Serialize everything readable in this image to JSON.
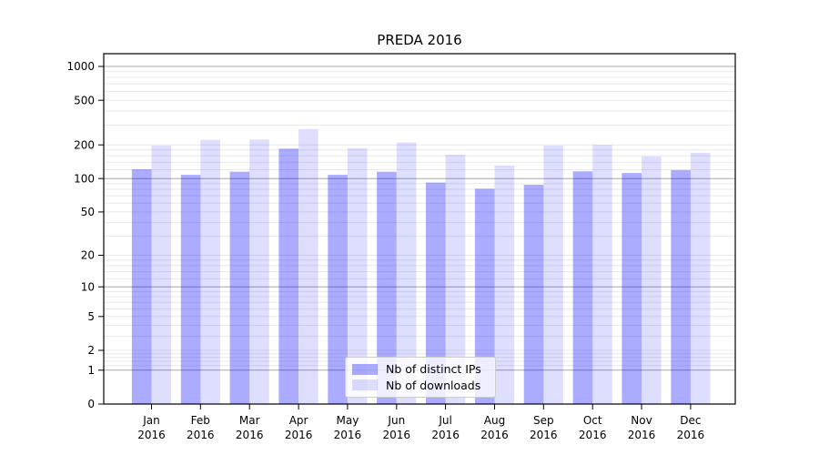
{
  "title": "PREDA 2016",
  "chart_data": {
    "type": "bar",
    "title": "PREDA 2016",
    "categories": [
      "Jan 2016",
      "Feb 2016",
      "Mar 2016",
      "Apr 2016",
      "May 2016",
      "Jun 2016",
      "Jul 2016",
      "Aug 2016",
      "Sep 2016",
      "Oct 2016",
      "Nov 2016",
      "Dec 2016"
    ],
    "months": [
      "Jan",
      "Feb",
      "Mar",
      "Apr",
      "May",
      "Jun",
      "Jul",
      "Aug",
      "Sep",
      "Oct",
      "Nov",
      "Dec"
    ],
    "year_label": "2016",
    "series": [
      {
        "name": "Nb of distinct IPs",
        "color": "rgba(0,0,255,0.33)",
        "flat_color": "#ababff",
        "values": [
          121,
          108,
          115,
          185,
          108,
          115,
          92,
          81,
          88,
          116,
          112,
          119
        ]
      },
      {
        "name": "Nb of downloads",
        "color": "rgba(0,0,255,0.13)",
        "flat_color": "#dedeff",
        "values": [
          197,
          222,
          223,
          277,
          187,
          210,
          163,
          131,
          197,
          200,
          158,
          170
        ]
      }
    ],
    "y_tick_values": [
      0,
      1,
      2,
      5,
      10,
      20,
      50,
      100,
      200,
      500,
      1000
    ],
    "y_tick_labels": [
      "0",
      "1",
      "2",
      "5",
      "10",
      "20",
      "50",
      "100",
      "200",
      "500",
      "1000"
    ],
    "scale": "log10(1+y)",
    "ylim": [
      0,
      1300
    ],
    "xlabel": "",
    "ylabel": "",
    "grid": true,
    "legend_position": "lower center"
  }
}
